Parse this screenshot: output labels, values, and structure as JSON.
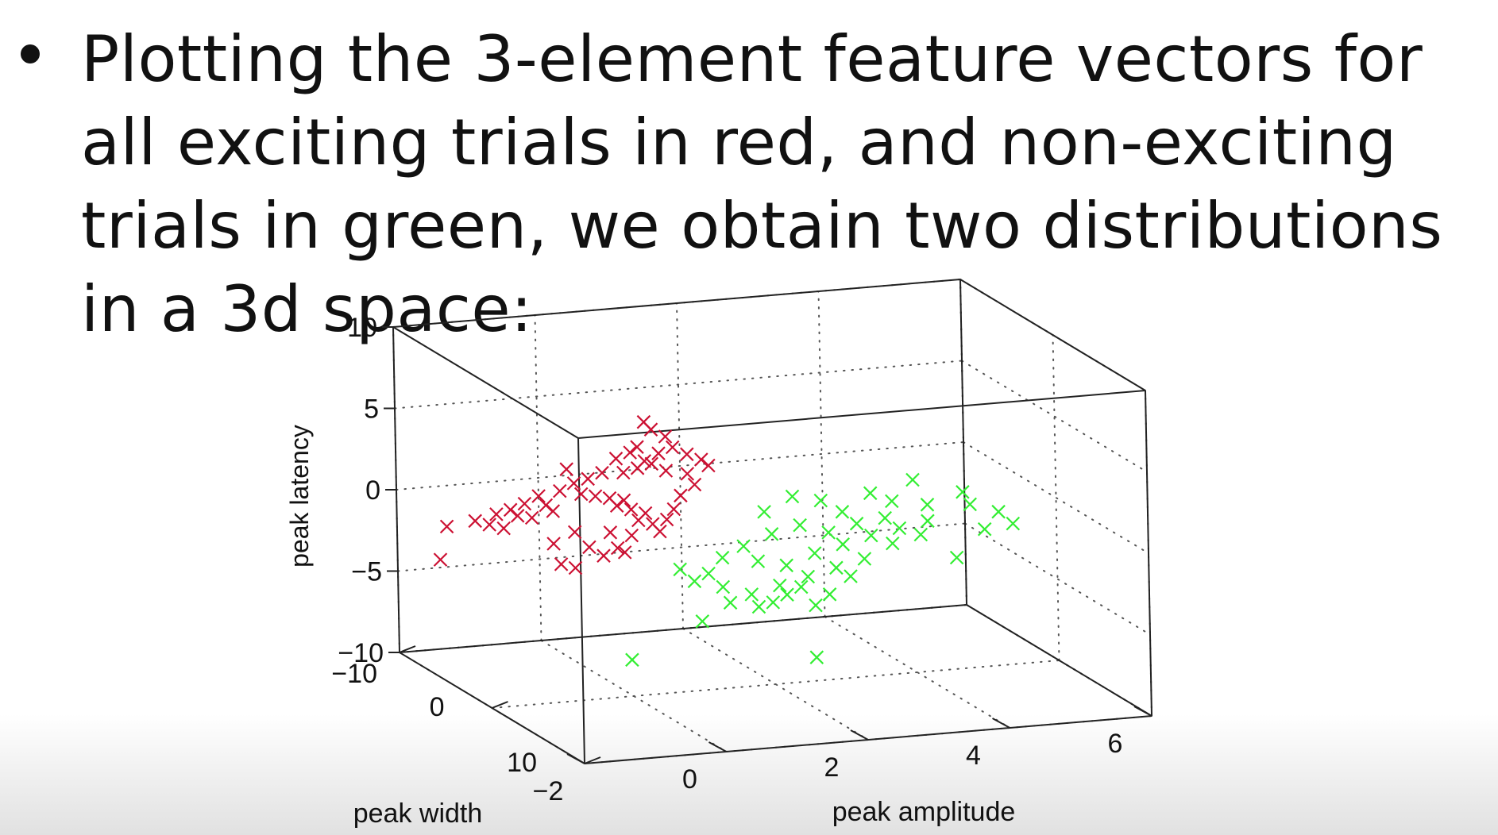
{
  "slide": {
    "bullet_text": "Plotting the 3-element feature vectors for all exciting trials in red, and non-exciting trials in green, we obtain two distributions in a 3d space:"
  },
  "colors": {
    "exciting": "#cc1133",
    "non_exciting": "#33ee33",
    "axes": "#222222",
    "grid": "#555555"
  },
  "chart_data": {
    "type": "scatter",
    "projection": "3d",
    "title": "",
    "xlabel": "peak amplitude",
    "ylabel": "peak width",
    "zlabel": "peak latency",
    "xlim": [
      -2,
      6
    ],
    "ylim": [
      -10,
      10
    ],
    "zlim": [
      -10,
      10
    ],
    "x_ticks": [
      "-2",
      "0",
      "2",
      "4",
      "6"
    ],
    "y_ticks": [
      "-10",
      "0",
      "10"
    ],
    "z_ticks": [
      "10",
      "5",
      "0",
      "-5",
      "-10"
    ],
    "grid": true,
    "marker": "x",
    "series": [
      {
        "name": "exciting trials",
        "color": "red",
        "points": [
          [
            0.2,
            -3,
            3.5
          ],
          [
            0.4,
            -3,
            3.8
          ],
          [
            0.6,
            -3,
            3.2
          ],
          [
            0.8,
            -3,
            3.6
          ],
          [
            1.0,
            -3,
            3.9
          ],
          [
            1.2,
            -3,
            3.4
          ],
          [
            0.3,
            -3,
            2.6
          ],
          [
            0.5,
            -3,
            2.8
          ],
          [
            0.7,
            -3,
            3.0
          ],
          [
            0.9,
            -3,
            2.5
          ],
          [
            -0.2,
            -3,
            2.4
          ],
          [
            0.0,
            -3,
            2.7
          ],
          [
            -0.4,
            -3,
            2.2
          ],
          [
            -0.6,
            -3,
            1.8
          ],
          [
            -0.9,
            -3,
            1.6
          ],
          [
            -1.1,
            -3,
            1.2
          ],
          [
            -0.8,
            -3,
            1.0
          ],
          [
            -1.3,
            -3,
            0.9
          ],
          [
            -1.5,
            -3,
            0.7
          ],
          [
            -1.2,
            -3,
            0.5
          ],
          [
            -1.0,
            -3,
            0.3
          ],
          [
            -0.7,
            -3,
            0.6
          ],
          [
            -1.6,
            -3,
            0.1
          ],
          [
            -1.4,
            -3,
            -0.2
          ],
          [
            -1.8,
            -3,
            0.4
          ],
          [
            -2.2,
            -3,
            0.2
          ],
          [
            -2.3,
            -3,
            -1.8
          ],
          [
            -0.3,
            -3,
            1.5
          ],
          [
            -0.1,
            -3,
            1.3
          ],
          [
            0.1,
            -3,
            1.1
          ],
          [
            0.3,
            -3,
            0.9
          ],
          [
            0.2,
            -3,
            0.6
          ],
          [
            0.4,
            -3,
            0.3
          ],
          [
            0.6,
            -3,
            0.0
          ],
          [
            0.5,
            -3,
            -0.4
          ],
          [
            0.7,
            -3,
            -0.7
          ],
          [
            0.9,
            -3,
            -0.5
          ],
          [
            0.8,
            -3,
            -1.2
          ],
          [
            0.4,
            -3,
            -1.3
          ],
          [
            0.1,
            -3,
            -1.0
          ],
          [
            -0.4,
            -3,
            -0.8
          ],
          [
            -0.7,
            -3,
            -1.4
          ],
          [
            -0.2,
            -3,
            -1.8
          ],
          [
            0.2,
            -3,
            -2.0
          ],
          [
            -0.6,
            -3,
            -2.7
          ],
          [
            -0.4,
            -3,
            -3.0
          ],
          [
            0.0,
            -3,
            -2.4
          ],
          [
            1.1,
            -3,
            0.9
          ],
          [
            1.3,
            -3,
            1.5
          ],
          [
            1.2,
            -3,
            2.2
          ],
          [
            1.5,
            -3,
            2.6
          ],
          [
            1.4,
            -3,
            3.0
          ],
          [
            0.6,
            -3,
            5.6
          ],
          [
            0.7,
            -3,
            5.1
          ],
          [
            0.9,
            -3,
            4.6
          ],
          [
            0.5,
            -3,
            4.1
          ],
          [
            -0.5,
            -3,
            3.1
          ],
          [
            1.0,
            -3,
            0.1
          ],
          [
            0.3,
            -3,
            -2.3
          ]
        ]
      },
      {
        "name": "non-exciting trials",
        "color": "green",
        "points": [
          [
            1.5,
            3,
            1.8
          ],
          [
            1.9,
            3,
            2.6
          ],
          [
            2.3,
            3,
            2.2
          ],
          [
            2.6,
            3,
            1.4
          ],
          [
            3.0,
            3,
            2.4
          ],
          [
            3.3,
            3,
            1.8
          ],
          [
            2.8,
            3,
            0.6
          ],
          [
            2.4,
            3,
            0.2
          ],
          [
            2.0,
            3,
            0.8
          ],
          [
            1.6,
            3,
            0.4
          ],
          [
            1.2,
            3,
            -0.2
          ],
          [
            0.9,
            3,
            -0.8
          ],
          [
            1.4,
            3,
            -1.2
          ],
          [
            1.8,
            3,
            -1.6
          ],
          [
            2.2,
            3,
            -1.0
          ],
          [
            2.6,
            3,
            -0.6
          ],
          [
            3.0,
            3,
            -0.2
          ],
          [
            3.4,
            3,
            0.1
          ],
          [
            3.8,
            3,
            0.4
          ],
          [
            3.7,
            3,
            -0.4
          ],
          [
            3.3,
            3,
            -0.8
          ],
          [
            2.9,
            3,
            -1.6
          ],
          [
            2.5,
            3,
            -2.0
          ],
          [
            2.1,
            3,
            -2.4
          ],
          [
            1.7,
            3,
            -2.8
          ],
          [
            1.3,
            3,
            -3.2
          ],
          [
            0.9,
            3,
            -2.6
          ],
          [
            0.5,
            3,
            -2.1
          ],
          [
            0.3,
            3,
            -1.3
          ],
          [
            0.7,
            3,
            -1.7
          ],
          [
            1.0,
            3,
            -3.6
          ],
          [
            1.4,
            3,
            -4.0
          ],
          [
            1.8,
            3,
            -3.4
          ],
          [
            2.2,
            3,
            -4.2
          ],
          [
            2.0,
            3,
            -3.0
          ],
          [
            1.6,
            3,
            -3.8
          ],
          [
            2.4,
            3,
            -3.6
          ],
          [
            0.6,
            3,
            -4.6
          ],
          [
            -0.4,
            3,
            -6.6
          ],
          [
            2.2,
            3,
            -7.4
          ],
          [
            4.2,
            3,
            -2.0
          ],
          [
            4.4,
            3,
            1.2
          ],
          [
            4.8,
            3,
            0.6
          ],
          [
            5.0,
            3,
            -0.2
          ],
          [
            4.6,
            3,
            -0.4
          ],
          [
            4.3,
            3,
            2.0
          ],
          [
            3.6,
            3,
            3.0
          ],
          [
            3.8,
            3,
            1.4
          ],
          [
            3.2,
            3,
            0.8
          ],
          [
            2.7,
            3,
            -2.6
          ]
        ]
      }
    ]
  }
}
